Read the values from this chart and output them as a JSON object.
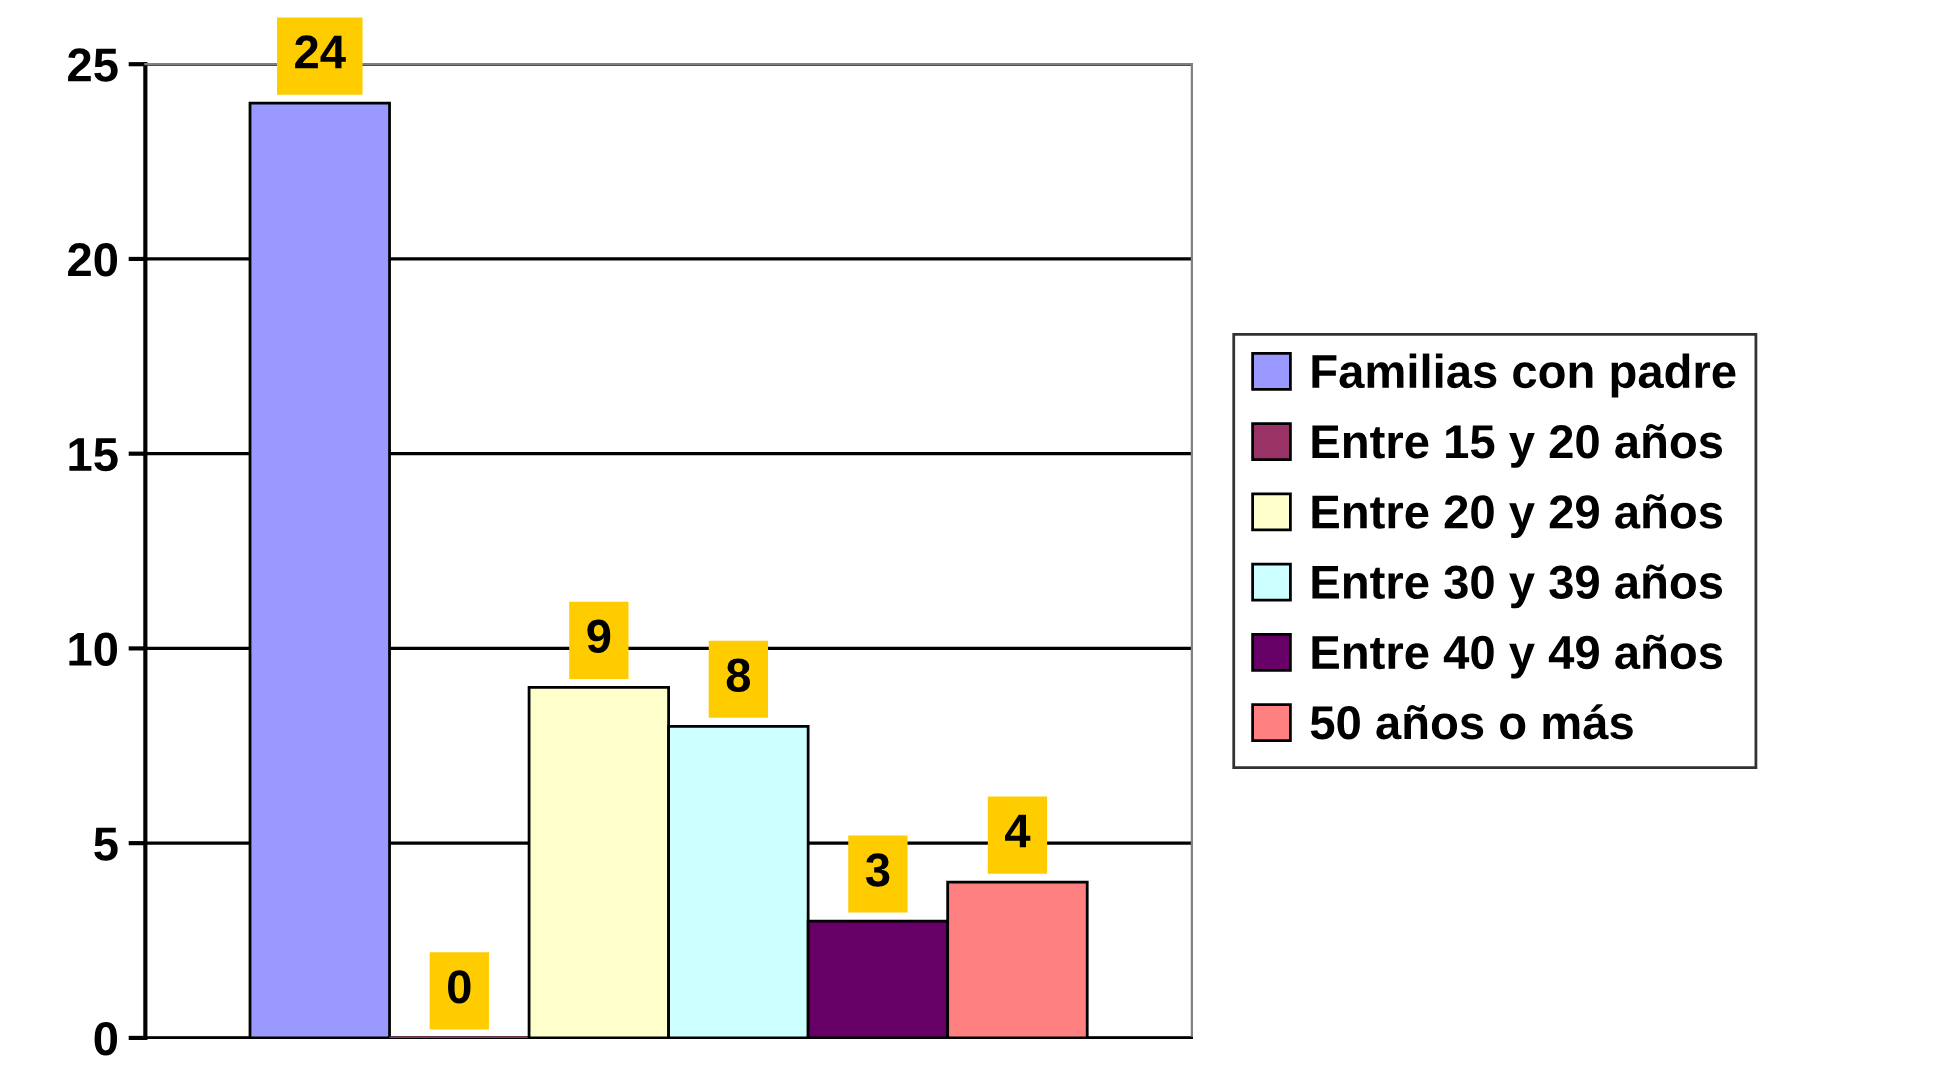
{
  "chart_data": {
    "type": "bar",
    "categories": [
      null
    ],
    "series": [
      {
        "name": "Familias con padre",
        "color": "#9999ff",
        "values": [
          24
        ]
      },
      {
        "name": "Entre 15 y 20 años",
        "color": "#993366",
        "values": [
          0
        ]
      },
      {
        "name": "Entre 20 y 29 años",
        "color": "#ffffcc",
        "values": [
          9
        ]
      },
      {
        "name": "Entre 30 y 39 años",
        "color": "#ccffff",
        "values": [
          8
        ]
      },
      {
        "name": "Entre 40 y 49 años",
        "color": "#660066",
        "values": [
          3
        ]
      },
      {
        "name": "50 años o más",
        "color": "#ff8080",
        "values": [
          4
        ]
      }
    ],
    "ylim": [
      0,
      25
    ],
    "yticks": [
      0,
      5,
      10,
      15,
      20,
      25
    ],
    "grid": "y",
    "legend": "right",
    "data_labels": true
  }
}
